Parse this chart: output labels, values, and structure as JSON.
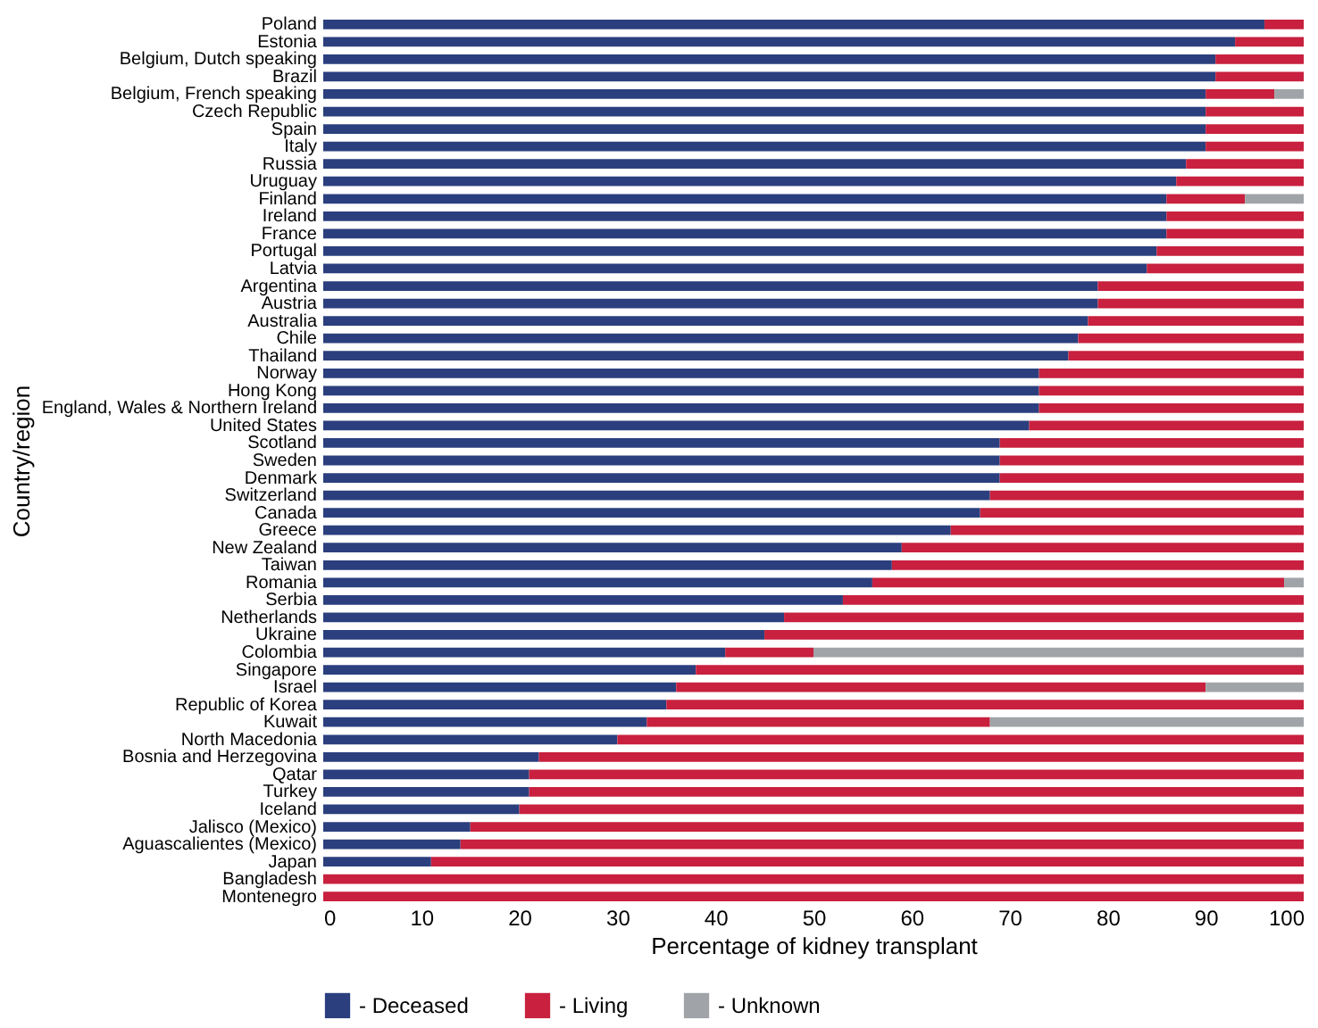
{
  "chart_data": {
    "type": "bar",
    "orientation": "horizontal",
    "stacked": true,
    "xlabel": "Percentage of kidney transplant",
    "ylabel": "Country/region",
    "categories": [
      "Poland",
      "Estonia",
      "Belgium, Dutch speaking",
      "Brazil",
      "Belgium, French speaking",
      "Czech Republic",
      "Spain",
      "Italy",
      "Russia",
      "Uruguay",
      "Finland",
      "Ireland",
      "France",
      "Portugal",
      "Latvia",
      "Argentina",
      "Austria",
      "Australia",
      "Chile",
      "Thailand",
      "Norway",
      "Hong Kong",
      "England, Wales & Northern Ireland",
      "United States",
      "Scotland",
      "Sweden",
      "Denmark",
      "Switzerland",
      "Canada",
      "Greece",
      "New Zealand",
      "Taiwan",
      "Romania",
      "Serbia",
      "Netherlands",
      "Ukraine",
      "Colombia",
      "Singapore",
      "Israel",
      "Republic of Korea",
      "Kuwait",
      "North Macedonia",
      "Bosnia and Herzegovina",
      "Qatar",
      "Turkey",
      "Iceland",
      "Jalisco (Mexico)",
      "Aguascalientes (Mexico)",
      "Japan",
      "Bangladesh",
      "Montenegro"
    ],
    "series": [
      {
        "name": "- Deceased",
        "color": "#2b3f7e",
        "values": [
          96,
          93,
          91,
          91,
          90,
          90,
          90,
          90,
          88,
          87,
          86,
          86,
          86,
          85,
          84,
          79,
          79,
          78,
          77,
          76,
          73,
          73,
          73,
          72,
          69,
          69,
          69,
          68,
          67,
          64,
          59,
          58,
          56,
          53,
          47,
          45,
          41,
          38,
          36,
          35,
          33,
          30,
          22,
          21,
          21,
          20,
          15,
          14,
          11,
          0,
          0
        ]
      },
      {
        "name": "- Living",
        "color": "#c8203e",
        "values": [
          4,
          7,
          9,
          9,
          7,
          10,
          10,
          10,
          12,
          13,
          8,
          14,
          14,
          15,
          16,
          21,
          21,
          22,
          23,
          24,
          27,
          27,
          27,
          28,
          31,
          31,
          31,
          32,
          33,
          36,
          41,
          42,
          42,
          47,
          53,
          55,
          9,
          62,
          54,
          65,
          35,
          70,
          78,
          79,
          79,
          80,
          85,
          86,
          89,
          100,
          100
        ]
      },
      {
        "name": "- Unknown",
        "color": "#a0a4a8",
        "values": [
          0,
          0,
          0,
          0,
          3,
          0,
          0,
          0,
          0,
          0,
          6,
          0,
          0,
          0,
          0,
          0,
          0,
          0,
          0,
          0,
          0,
          0,
          0,
          0,
          0,
          0,
          0,
          0,
          0,
          0,
          0,
          0,
          2,
          0,
          0,
          0,
          50,
          0,
          10,
          0,
          32,
          0,
          0,
          0,
          0,
          0,
          0,
          0,
          0,
          0,
          0
        ]
      }
    ],
    "xlim": [
      0,
      100
    ],
    "xticks": [
      0,
      10,
      20,
      30,
      40,
      50,
      60,
      70,
      80,
      90,
      100
    ],
    "grid": false,
    "legend": "bottom"
  }
}
